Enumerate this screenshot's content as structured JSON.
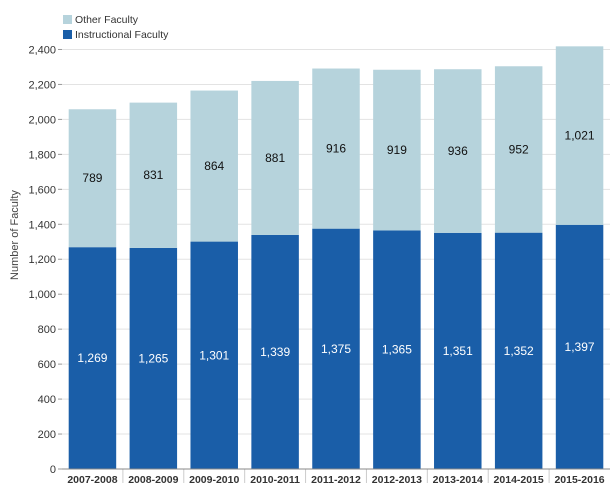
{
  "chart_data": {
    "type": "bar",
    "stacked": true,
    "categories": [
      "2007-2008",
      "2008-2009",
      "2009-2010",
      "2010-2011",
      "2011-2012",
      "2012-2013",
      "2013-2014",
      "2014-2015",
      "2015-2016"
    ],
    "series": [
      {
        "name": "Instructional Faculty",
        "color": "#1a5ea8",
        "values": [
          1269,
          1265,
          1301,
          1339,
          1375,
          1365,
          1351,
          1352,
          1397
        ],
        "labels": [
          "1,269",
          "1,265",
          "1,301",
          "1,339",
          "1,375",
          "1,365",
          "1,351",
          "1,352",
          "1,397"
        ]
      },
      {
        "name": "Other Faculty",
        "color": "#b6d3dc",
        "values": [
          789,
          831,
          864,
          881,
          916,
          919,
          936,
          952,
          1021
        ],
        "labels": [
          "789",
          "831",
          "864",
          "881",
          "916",
          "919",
          "936",
          "952",
          "1,021"
        ]
      }
    ],
    "ylabel": "Number of Faculty",
    "ylim": [
      0,
      2500
    ],
    "yticks": [
      0,
      200,
      400,
      600,
      800,
      1000,
      1200,
      1400,
      1600,
      1800,
      2000,
      2200,
      2400
    ],
    "ytick_labels": [
      "0",
      "200",
      "400",
      "600",
      "800",
      "1,000",
      "1,200",
      "1,400",
      "1,600",
      "1,800",
      "2,000",
      "2,200",
      "2,400"
    ],
    "legend": [
      "Other Faculty",
      "Instructional Faculty"
    ],
    "legend_position": "top-left"
  }
}
